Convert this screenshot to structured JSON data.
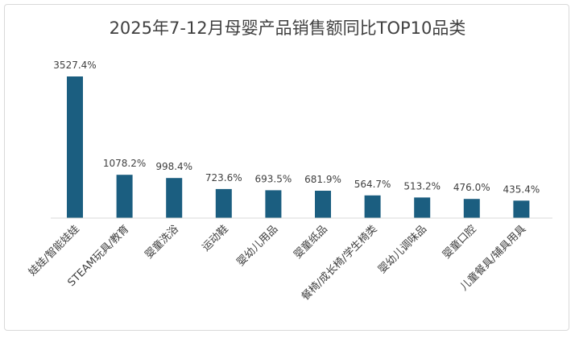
{
  "chart_data": {
    "type": "bar",
    "title": "2025年7-12月母婴产品销售额同比TOP10品类",
    "categories": [
      "娃娃/智能娃娃",
      "STEAM玩具/教育",
      "婴童洗浴",
      "运动鞋",
      "婴幼儿用品",
      "婴童纸品",
      "餐椅/成长椅/学生椅类",
      "婴幼儿调味品",
      "婴童口腔",
      "儿童餐具/辅具用具"
    ],
    "values": [
      3527.4,
      1078.2,
      998.4,
      723.6,
      693.5,
      681.9,
      564.7,
      513.2,
      476.0,
      435.4
    ],
    "data_labels": [
      "3527.4%",
      "1078.2%",
      "998.4%",
      "723.6%",
      "693.5%",
      "681.9%",
      "564.7%",
      "513.2%",
      "476.0%",
      "435.4%"
    ],
    "unit": "%",
    "ylim": [
      0,
      3527.4
    ],
    "grid": false,
    "legend": "none",
    "bar_color": "#1b5e80",
    "axis_color": "#d9d9d9"
  }
}
